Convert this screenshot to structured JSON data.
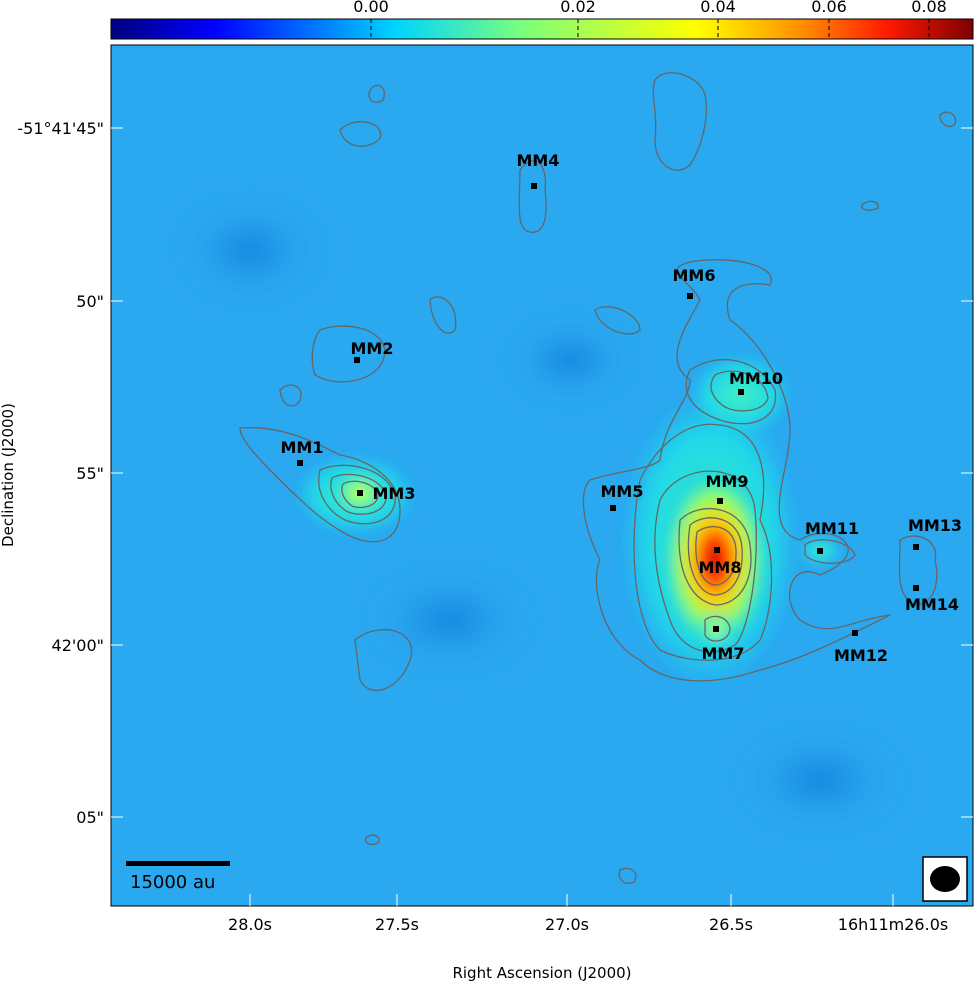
{
  "colorbar": {
    "ticks": [
      "0.00",
      "0.02",
      "0.04",
      "0.06",
      "0.08"
    ]
  },
  "x_axis": {
    "label": "Right Ascension (J2000)",
    "ticks": [
      "28.0s",
      "27.5s",
      "27.0s",
      "26.5s",
      "16h11m26.0s"
    ]
  },
  "y_axis": {
    "label": "Declination (J2000)",
    "ticks": [
      "-51°41'45\"",
      "50\"",
      "55\"",
      "42'00\"",
      "05\""
    ]
  },
  "sources": [
    "MM1",
    "MM2",
    "MM3",
    "MM4",
    "MM5",
    "MM6",
    "MM7",
    "MM8",
    "MM9",
    "MM10",
    "MM11",
    "MM12",
    "MM13",
    "MM14"
  ],
  "scale_bar": "15000 au"
}
